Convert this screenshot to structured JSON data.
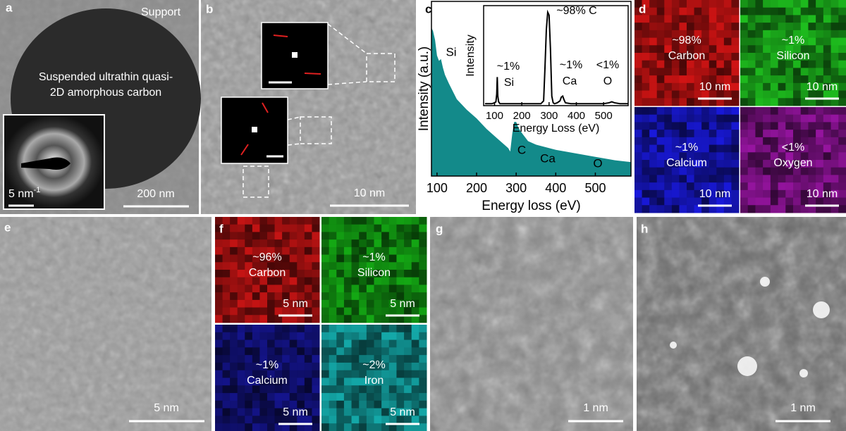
{
  "panels": {
    "a": {
      "label": "a",
      "support": "Support",
      "caption": [
        "Suspended ultrathin quasi-",
        "2D amorphous carbon"
      ],
      "inset_scale": "5 nm",
      "inset_scale_exp": "-1",
      "scale": "200 nm"
    },
    "b": {
      "label": "b",
      "scale": "10 nm"
    },
    "c": {
      "label": "c"
    },
    "d": {
      "label": "d",
      "maps": [
        {
          "fraction": "~98%",
          "element": "Carbon",
          "scale": "10 nm"
        },
        {
          "fraction": "~1%",
          "element": "Silicon",
          "scale": "10 nm"
        },
        {
          "fraction": "~1%",
          "element": "Calcium",
          "scale": "10 nm"
        },
        {
          "fraction": "<1%",
          "element": "Oxygen",
          "scale": "10 nm"
        }
      ]
    },
    "e": {
      "label": "e",
      "scale": "5 nm"
    },
    "f": {
      "label": "f",
      "maps": [
        {
          "fraction": "~96%",
          "element": "Carbon",
          "scale": "5 nm"
        },
        {
          "fraction": "~1%",
          "element": "Silicon",
          "scale": "5 nm"
        },
        {
          "fraction": "~1%",
          "element": "Calcium",
          "scale": "5 nm"
        },
        {
          "fraction": "~2%",
          "element": "Iron",
          "scale": "5 nm"
        }
      ]
    },
    "g": {
      "label": "g",
      "scale": "1 nm"
    },
    "h": {
      "label": "h",
      "scale": "1 nm"
    }
  },
  "chart_data": [
    {
      "type": "area",
      "x_label": "Energy loss (eV)",
      "y_label": "Intensity (a.u.)",
      "color": "#138a8a",
      "x": [
        86,
        90,
        95,
        100,
        105,
        110,
        115,
        120,
        130,
        150,
        175,
        200,
        225,
        250,
        270,
        280,
        285,
        290,
        295,
        300,
        305,
        310,
        320,
        330,
        350,
        400,
        450,
        500,
        550,
        590
      ],
      "values": [
        85,
        83,
        78,
        69,
        66,
        67,
        62,
        58,
        53,
        44,
        38,
        33,
        27,
        22,
        18,
        16,
        14,
        24,
        31,
        31,
        28,
        26,
        23,
        20,
        18,
        15,
        13,
        11,
        9,
        8
      ],
      "xlim": [
        86,
        590
      ],
      "ylim": [
        0,
        100
      ],
      "xticks": [
        100,
        200,
        300,
        400,
        500
      ],
      "annotations": [
        "Si",
        "C",
        "Ca",
        "O"
      ]
    },
    {
      "type": "line",
      "x_label": "Energy Loss (eV)",
      "y_label": "Intensity",
      "color": "#000000",
      "x": [
        65,
        90,
        100,
        105,
        108,
        110,
        112,
        115,
        120,
        150,
        200,
        250,
        270,
        280,
        285,
        290,
        295,
        300,
        305,
        310,
        315,
        320,
        330,
        340,
        345,
        350,
        355,
        360,
        380,
        400,
        450,
        500,
        520,
        530,
        540,
        560,
        590
      ],
      "values": [
        2,
        2,
        3,
        4,
        12,
        30,
        10,
        4,
        2,
        2,
        2,
        2,
        2,
        5,
        40,
        80,
        98,
        95,
        60,
        10,
        3,
        2,
        3,
        5,
        9,
        10,
        6,
        3,
        2,
        2,
        2,
        2,
        3,
        4,
        3,
        2,
        2
      ],
      "xlim": [
        60,
        590
      ],
      "ylim": [
        0,
        105
      ],
      "xticks": [
        100,
        200,
        300,
        400,
        500
      ],
      "annotations": [
        "~98% C",
        "~1%",
        "Si",
        "~1%",
        "Ca",
        "<1%",
        "O"
      ]
    }
  ]
}
